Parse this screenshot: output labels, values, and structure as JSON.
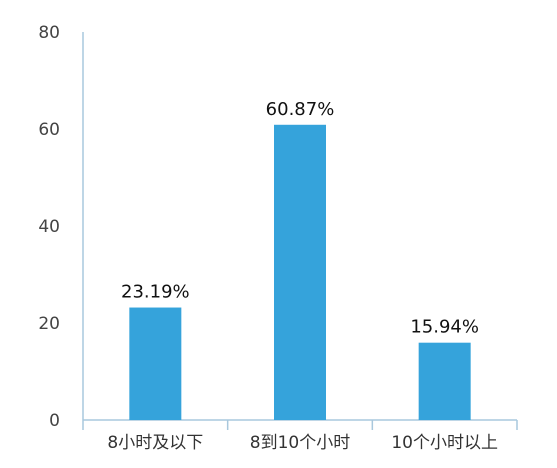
{
  "chart_data": {
    "type": "bar",
    "categories": [
      "8小时及以下",
      "8到10个小时",
      "10个小时以上"
    ],
    "values": [
      23.19,
      60.87,
      15.94
    ],
    "data_labels": [
      "23.19%",
      "60.87%",
      "15.94%"
    ],
    "yticks": [
      "0",
      "20",
      "40",
      "60",
      "80"
    ],
    "ylim": [
      0,
      80
    ],
    "grid": false,
    "legend": "none",
    "bar_color": "#35a3db",
    "axis_color": "#a9c8dd"
  }
}
